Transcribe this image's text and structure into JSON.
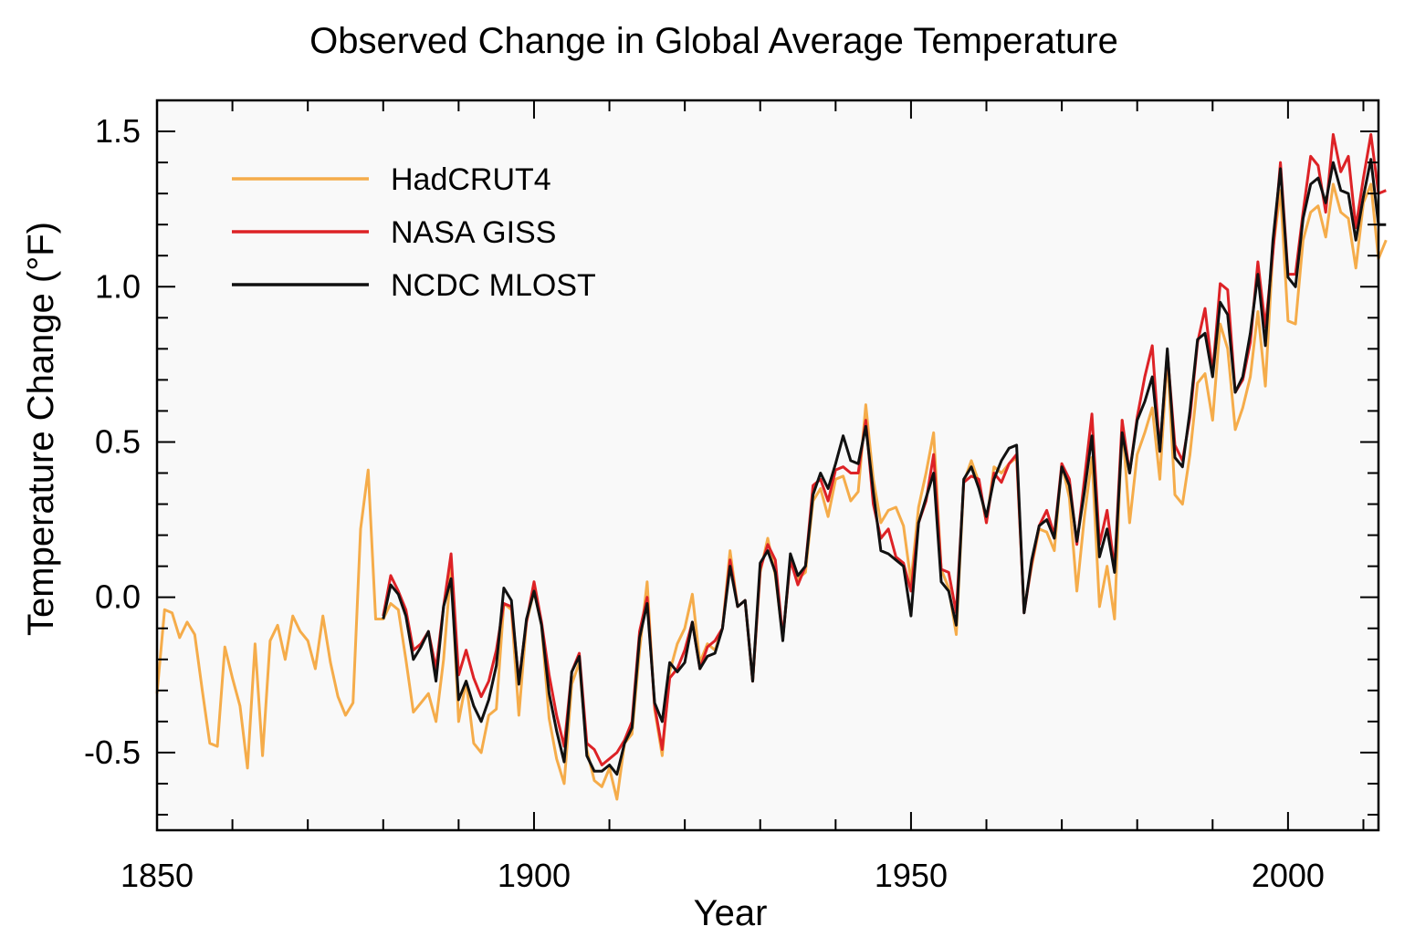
{
  "chart_data": {
    "type": "line",
    "title": "Observed Change in Global Average Temperature",
    "xlabel": "Year",
    "ylabel": "Temperature Change (°F)",
    "xlim": [
      1850,
      2012
    ],
    "ylim": [
      -0.75,
      1.6
    ],
    "x_ticks": [
      1850,
      1900,
      1950,
      2000
    ],
    "x_tick_labels": [
      "1850",
      "1900",
      "1950",
      "2000"
    ],
    "y_ticks": [
      -0.5,
      0.0,
      0.5,
      1.0,
      1.5
    ],
    "y_tick_labels": [
      "-0.5",
      "0.0",
      "0.5",
      "1.0",
      "1.5"
    ],
    "grid": false,
    "legend_position": "top-left",
    "background_color": "#f9f9f9",
    "series": [
      {
        "name": "HadCRUT4",
        "color": "#f5ac4a",
        "start_year": 1850,
        "values": [
          -0.31,
          -0.04,
          -0.05,
          -0.13,
          -0.08,
          -0.12,
          -0.3,
          -0.47,
          -0.48,
          -0.16,
          -0.26,
          -0.35,
          -0.55,
          -0.15,
          -0.51,
          -0.14,
          -0.09,
          -0.2,
          -0.06,
          -0.11,
          -0.14,
          -0.23,
          -0.06,
          -0.21,
          -0.32,
          -0.38,
          -0.34,
          0.22,
          0.41,
          -0.07,
          -0.07,
          -0.02,
          -0.04,
          -0.2,
          -0.37,
          -0.34,
          -0.31,
          -0.4,
          -0.2,
          0.1,
          -0.4,
          -0.27,
          -0.47,
          -0.5,
          -0.38,
          -0.36,
          -0.02,
          -0.04,
          -0.38,
          -0.08,
          0.02,
          -0.09,
          -0.39,
          -0.52,
          -0.6,
          -0.28,
          -0.21,
          -0.49,
          -0.59,
          -0.61,
          -0.55,
          -0.65,
          -0.47,
          -0.44,
          -0.17,
          0.05,
          -0.36,
          -0.51,
          -0.24,
          -0.15,
          -0.1,
          0.01,
          -0.21,
          -0.15,
          -0.17,
          -0.1,
          0.15,
          -0.03,
          -0.01,
          -0.27,
          0.08,
          0.19,
          0.07,
          -0.13,
          0.12,
          0.06,
          0.08,
          0.31,
          0.35,
          0.26,
          0.38,
          0.39,
          0.31,
          0.34,
          0.62,
          0.38,
          0.24,
          0.28,
          0.29,
          0.23,
          0.05,
          0.29,
          0.4,
          0.53,
          0.09,
          0.03,
          -0.12,
          0.37,
          0.44,
          0.37,
          0.24,
          0.42,
          0.4,
          0.43,
          0.45,
          -0.04,
          0.1,
          0.22,
          0.21,
          0.15,
          0.43,
          0.32,
          0.02,
          0.26,
          0.45,
          -0.03,
          0.1,
          -0.07,
          0.57,
          0.24,
          0.46,
          0.53,
          0.61,
          0.38,
          0.78,
          0.33,
          0.3,
          0.46,
          0.69,
          0.72,
          0.57,
          0.88,
          0.8,
          0.54,
          0.61,
          0.71,
          0.92,
          0.68,
          1.12,
          1.31,
          0.89,
          0.88,
          1.15,
          1.24,
          1.26,
          1.16,
          1.33,
          1.24,
          1.22,
          1.06,
          1.27,
          1.33,
          1.09,
          1.15
        ]
      },
      {
        "name": "NASA GISS",
        "color": "#dd2226",
        "start_year": 1880,
        "values": [
          -0.06,
          0.07,
          0.02,
          -0.04,
          -0.17,
          -0.15,
          -0.11,
          -0.23,
          -0.03,
          0.14,
          -0.25,
          -0.17,
          -0.26,
          -0.32,
          -0.27,
          -0.17,
          -0.02,
          -0.03,
          -0.27,
          -0.08,
          0.05,
          -0.08,
          -0.25,
          -0.38,
          -0.48,
          -0.24,
          -0.18,
          -0.47,
          -0.49,
          -0.54,
          -0.52,
          -0.5,
          -0.46,
          -0.4,
          -0.11,
          0.0,
          -0.35,
          -0.49,
          -0.26,
          -0.23,
          -0.17,
          -0.08,
          -0.23,
          -0.16,
          -0.14,
          -0.1,
          0.12,
          -0.03,
          -0.01,
          -0.27,
          0.09,
          0.17,
          0.12,
          -0.13,
          0.12,
          0.04,
          0.1,
          0.36,
          0.38,
          0.31,
          0.41,
          0.42,
          0.4,
          0.4,
          0.57,
          0.3,
          0.19,
          0.22,
          0.13,
          0.11,
          0.02,
          0.24,
          0.31,
          0.46,
          0.09,
          0.08,
          -0.05,
          0.37,
          0.39,
          0.38,
          0.24,
          0.4,
          0.37,
          0.43,
          0.46,
          -0.05,
          0.11,
          0.23,
          0.28,
          0.2,
          0.43,
          0.38,
          0.17,
          0.38,
          0.59,
          0.17,
          0.28,
          0.09,
          0.57,
          0.4,
          0.58,
          0.71,
          0.81,
          0.47,
          0.79,
          0.49,
          0.44,
          0.58,
          0.82,
          0.93,
          0.72,
          1.01,
          0.99,
          0.66,
          0.7,
          0.82,
          1.08,
          0.87,
          1.11,
          1.4,
          1.04,
          1.04,
          1.24,
          1.42,
          1.39,
          1.24,
          1.49,
          1.37,
          1.42,
          1.19,
          1.35,
          1.49,
          1.3,
          1.31
        ]
      },
      {
        "name": "NCDC MLOST",
        "color": "#111111",
        "start_year": 1880,
        "values": [
          -0.07,
          0.04,
          0.01,
          -0.06,
          -0.2,
          -0.16,
          -0.11,
          -0.27,
          -0.03,
          0.06,
          -0.33,
          -0.27,
          -0.35,
          -0.4,
          -0.33,
          -0.22,
          0.03,
          -0.01,
          -0.28,
          -0.07,
          0.02,
          -0.09,
          -0.31,
          -0.43,
          -0.53,
          -0.24,
          -0.19,
          -0.51,
          -0.56,
          -0.56,
          -0.54,
          -0.57,
          -0.47,
          -0.42,
          -0.13,
          -0.02,
          -0.34,
          -0.4,
          -0.21,
          -0.24,
          -0.21,
          -0.08,
          -0.23,
          -0.19,
          -0.18,
          -0.1,
          0.1,
          -0.03,
          -0.01,
          -0.27,
          0.11,
          0.15,
          0.08,
          -0.14,
          0.14,
          0.07,
          0.1,
          0.33,
          0.4,
          0.35,
          0.43,
          0.52,
          0.44,
          0.43,
          0.55,
          0.34,
          0.15,
          0.14,
          0.12,
          0.1,
          -0.06,
          0.24,
          0.32,
          0.4,
          0.05,
          0.02,
          -0.09,
          0.38,
          0.42,
          0.35,
          0.26,
          0.38,
          0.44,
          0.48,
          0.49,
          -0.05,
          0.12,
          0.23,
          0.25,
          0.19,
          0.42,
          0.36,
          0.18,
          0.34,
          0.52,
          0.13,
          0.22,
          0.08,
          0.53,
          0.4,
          0.57,
          0.63,
          0.71,
          0.47,
          0.8,
          0.45,
          0.42,
          0.6,
          0.83,
          0.85,
          0.71,
          0.95,
          0.91,
          0.66,
          0.71,
          0.85,
          1.04,
          0.81,
          1.15,
          1.38,
          1.03,
          1.0,
          1.22,
          1.33,
          1.35,
          1.27,
          1.4,
          1.31,
          1.3,
          1.15,
          1.29,
          1.41,
          1.2,
          1.2
        ]
      }
    ]
  }
}
